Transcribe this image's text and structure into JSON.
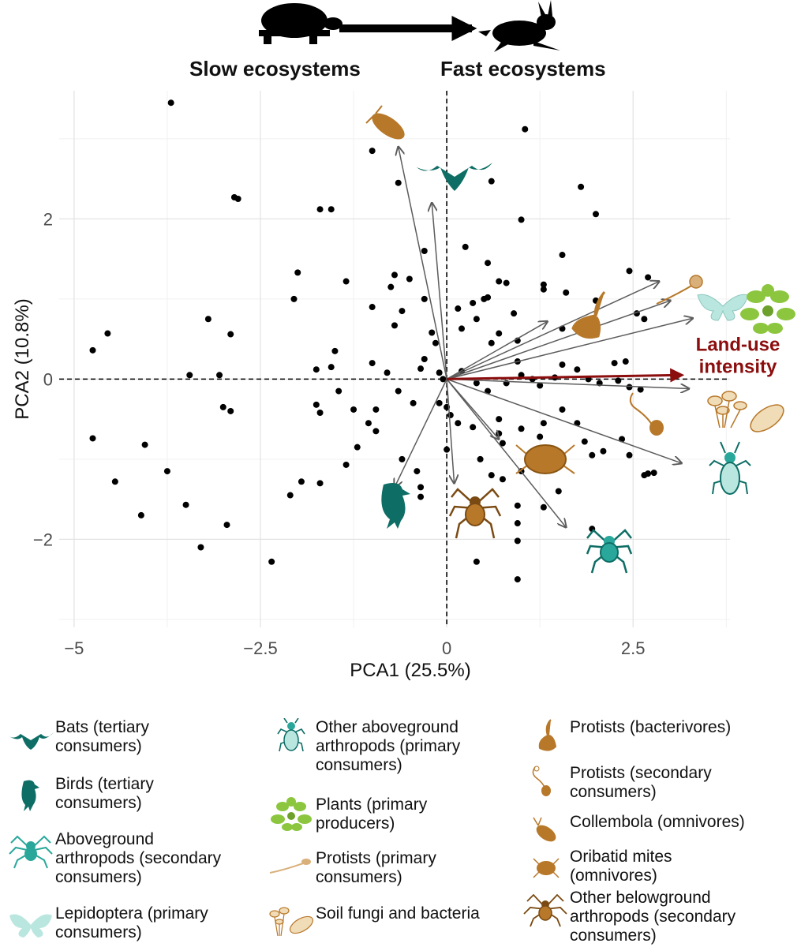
{
  "header": {
    "slow_label": "Slow ecosystems",
    "fast_label": "Fast ecosystems"
  },
  "chart_data": {
    "type": "scatter",
    "title": "",
    "xlabel": "PCA1 (25.5%)",
    "ylabel": "PCA2 (10.8%)",
    "xlim": [
      -5.2,
      3.8
    ],
    "ylim": [
      -3.1,
      3.6
    ],
    "xticks": [
      -5,
      -2.5,
      0,
      2.5
    ],
    "xtick_labels": [
      "−5",
      "−2.5",
      "0",
      "2.5"
    ],
    "yticks": [
      -2,
      0,
      2
    ],
    "ytick_labels": [
      "−2",
      "0",
      "2"
    ],
    "grid": true,
    "points": [
      [
        -3.7,
        3.45
      ],
      [
        -1.0,
        2.85
      ],
      [
        1.05,
        3.12
      ],
      [
        -2.85,
        2.27
      ],
      [
        -2.8,
        2.25
      ],
      [
        -1.7,
        2.12
      ],
      [
        -1.55,
        2.12
      ],
      [
        -0.65,
        2.45
      ],
      [
        0.6,
        2.47
      ],
      [
        1.8,
        2.4
      ],
      [
        2.0,
        2.06
      ],
      [
        1.0,
        1.99
      ],
      [
        0.25,
        1.65
      ],
      [
        0.55,
        1.45
      ],
      [
        1.55,
        1.55
      ],
      [
        -0.3,
        1.6
      ],
      [
        -2.0,
        1.33
      ],
      [
        -2.05,
        1.0
      ],
      [
        -1.35,
        1.22
      ],
      [
        -0.75,
        1.15
      ],
      [
        -0.7,
        1.3
      ],
      [
        -0.3,
        1.0
      ],
      [
        0.55,
        1.02
      ],
      [
        0.7,
        1.22
      ],
      [
        0.8,
        1.2
      ],
      [
        1.3,
        1.18
      ],
      [
        1.6,
        1.08
      ],
      [
        1.3,
        1.12
      ],
      [
        2.45,
        1.35
      ],
      [
        2.7,
        1.27
      ],
      [
        2.0,
        0.98
      ],
      [
        2.55,
        0.82
      ],
      [
        2.65,
        0.75
      ],
      [
        1.55,
        0.63
      ],
      [
        0.15,
        0.88
      ],
      [
        0.35,
        0.95
      ],
      [
        0.5,
        1.0
      ],
      [
        0.9,
        0.82
      ],
      [
        -3.2,
        0.75
      ],
      [
        -4.55,
        0.57
      ],
      [
        -4.75,
        0.36
      ],
      [
        -2.9,
        0.56
      ],
      [
        -1.5,
        0.35
      ],
      [
        -1.0,
        0.9
      ],
      [
        -0.5,
        1.25
      ],
      [
        -0.6,
        0.85
      ],
      [
        -0.7,
        0.67
      ],
      [
        -0.2,
        0.58
      ],
      [
        -0.15,
        0.45
      ],
      [
        -0.3,
        0.25
      ],
      [
        0.2,
        0.63
      ],
      [
        0.4,
        0.75
      ],
      [
        0.7,
        0.57
      ],
      [
        0.6,
        0.45
      ],
      [
        0.95,
        0.48
      ],
      [
        0.95,
        0.22
      ],
      [
        1.55,
        0.18
      ],
      [
        1.75,
        0.12
      ],
      [
        2.25,
        0.2
      ],
      [
        2.4,
        0.22
      ],
      [
        -3.05,
        0.05
      ],
      [
        -1.75,
        0.12
      ],
      [
        -1.55,
        0.15
      ],
      [
        -1.0,
        0.2
      ],
      [
        -0.8,
        0.08
      ],
      [
        -0.35,
        0.13
      ],
      [
        -0.1,
        0.08
      ],
      [
        -0.05,
        0.0
      ],
      [
        0.2,
        0.1
      ],
      [
        0.4,
        -0.05
      ],
      [
        0.8,
        -0.05
      ],
      [
        1.0,
        0.05
      ],
      [
        1.15,
        0.0
      ],
      [
        1.25,
        -0.08
      ],
      [
        1.45,
        0.02
      ],
      [
        1.9,
        0.0
      ],
      [
        2.05,
        -0.05
      ],
      [
        2.3,
        -0.02
      ],
      [
        2.45,
        -0.1
      ],
      [
        2.6,
        -0.13
      ],
      [
        -3.0,
        -0.35
      ],
      [
        -1.75,
        -0.32
      ],
      [
        -1.7,
        -0.42
      ],
      [
        -1.45,
        -0.15
      ],
      [
        -1.25,
        -0.38
      ],
      [
        -0.95,
        -0.38
      ],
      [
        -0.65,
        -0.15
      ],
      [
        -0.45,
        -0.3
      ],
      [
        -0.1,
        -0.3
      ],
      [
        0.0,
        -0.35
      ],
      [
        0.05,
        -0.45
      ],
      [
        0.15,
        -0.55
      ],
      [
        0.35,
        -0.6
      ],
      [
        0.55,
        -0.15
      ],
      [
        0.7,
        -0.5
      ],
      [
        0.7,
        -0.68
      ],
      [
        0.75,
        -0.8
      ],
      [
        1.0,
        -0.62
      ],
      [
        1.25,
        -0.72
      ],
      [
        1.3,
        -0.55
      ],
      [
        1.55,
        -0.38
      ],
      [
        1.75,
        -0.55
      ],
      [
        1.85,
        -0.78
      ],
      [
        1.95,
        -0.95
      ],
      [
        2.1,
        -0.9
      ],
      [
        2.35,
        -0.75
      ],
      [
        2.45,
        -0.95
      ],
      [
        2.65,
        -1.2
      ],
      [
        2.7,
        -1.18
      ],
      [
        2.78,
        -1.17
      ],
      [
        -4.75,
        -0.74
      ],
      [
        -4.05,
        -0.82
      ],
      [
        -1.95,
        -1.28
      ],
      [
        -1.7,
        -1.3
      ],
      [
        -1.35,
        -1.07
      ],
      [
        -1.2,
        -0.85
      ],
      [
        -1.05,
        -0.55
      ],
      [
        -0.95,
        -0.65
      ],
      [
        -0.6,
        -1.0
      ],
      [
        -0.4,
        -1.15
      ],
      [
        -0.35,
        -1.35
      ],
      [
        -0.35,
        -1.47
      ],
      [
        0.0,
        -0.88
      ],
      [
        0.45,
        -1.0
      ],
      [
        0.6,
        -1.2
      ],
      [
        0.75,
        -1.25
      ],
      [
        1.0,
        -1.15
      ],
      [
        1.3,
        -1.6
      ],
      [
        1.5,
        -1.4
      ],
      [
        0.95,
        -1.58
      ],
      [
        -4.45,
        -1.28
      ],
      [
        -3.75,
        -1.15
      ],
      [
        -3.5,
        -1.57
      ],
      [
        -4.1,
        -1.7
      ],
      [
        -3.3,
        -2.1
      ],
      [
        -2.95,
        -1.82
      ],
      [
        -2.35,
        -2.28
      ],
      [
        -2.1,
        -1.45
      ],
      [
        0.95,
        -1.8
      ],
      [
        0.95,
        -2.02
      ],
      [
        0.4,
        -2.28
      ],
      [
        0.95,
        -2.5
      ],
      [
        1.95,
        -1.87
      ],
      [
        -2.9,
        -0.4
      ],
      [
        -3.45,
        0.05
      ]
    ],
    "arrows": [
      {
        "name": "collembola",
        "x": -0.65,
        "y": 2.9
      },
      {
        "name": "bats",
        "x": -0.2,
        "y": 2.2
      },
      {
        "name": "protists-bacterivores",
        "x": 1.35,
        "y": 0.72
      },
      {
        "name": "protists-secondary",
        "x": 2.85,
        "y": 1.22
      },
      {
        "name": "lepidoptera",
        "x": 3.0,
        "y": 0.98
      },
      {
        "name": "plants",
        "x": 3.3,
        "y": 0.76
      },
      {
        "name": "soil-fungi-bacteria",
        "x": 3.25,
        "y": -0.12
      },
      {
        "name": "other-aboveground-arthropods",
        "x": 3.15,
        "y": -1.05
      },
      {
        "name": "oribatid-mites",
        "x": 0.7,
        "y": -0.75
      },
      {
        "name": "aboveground-arthropods-secondary",
        "x": 1.6,
        "y": -1.85
      },
      {
        "name": "other-belowground-arthropods",
        "x": 0.1,
        "y": -1.3
      },
      {
        "name": "birds",
        "x": -0.7,
        "y": -1.35
      }
    ],
    "highlight_arrow": {
      "label_line1": "Land-use",
      "label_line2": "intensity",
      "x": 3.15,
      "y": 0.05
    },
    "colors": {
      "teal": "#0e6e66",
      "teal_light": "#2aa79b",
      "mint": "#b9e6df",
      "brown": "#b7782a",
      "tan": "#d9b07a",
      "green": "#8cc63f",
      "maroon": "#8b0d0d",
      "arrow": "#5c5c5c"
    }
  },
  "legend": {
    "columns": [
      [
        {
          "icon": "bat-icon",
          "text": "Bats (tertiary consumers)"
        },
        {
          "icon": "bird-icon",
          "text": "Birds (tertiary consumers)"
        },
        {
          "icon": "spider-icon",
          "text": "Aboveground arthropods (secondary consumers)"
        },
        {
          "icon": "butterfly-icon",
          "text": "Lepidoptera (primary consumers)"
        }
      ],
      [
        {
          "icon": "insect-icon",
          "text": "Other aboveground arthropods (primary consumers)"
        },
        {
          "icon": "plant-icon",
          "text": "Plants (primary producers)"
        },
        {
          "icon": "flagellate-icon",
          "text": "Protists (primary consumers)"
        },
        {
          "icon": "fungi-bacteria-icon",
          "text": "Soil fungi and bacteria"
        }
      ],
      [
        {
          "icon": "protist-bacterivore-icon",
          "text": "Protists (bacterivores)"
        },
        {
          "icon": "protist-secondary-icon",
          "text": "Protists (secondary consumers)"
        },
        {
          "icon": "collembola-icon",
          "text": "Collembola (omnivores)"
        },
        {
          "icon": "mite-icon",
          "text": "Oribatid mites (omnivores)"
        },
        {
          "icon": "belowground-spider-icon",
          "text": "Other belowground arthropods (secondary consumers)"
        }
      ]
    ]
  }
}
